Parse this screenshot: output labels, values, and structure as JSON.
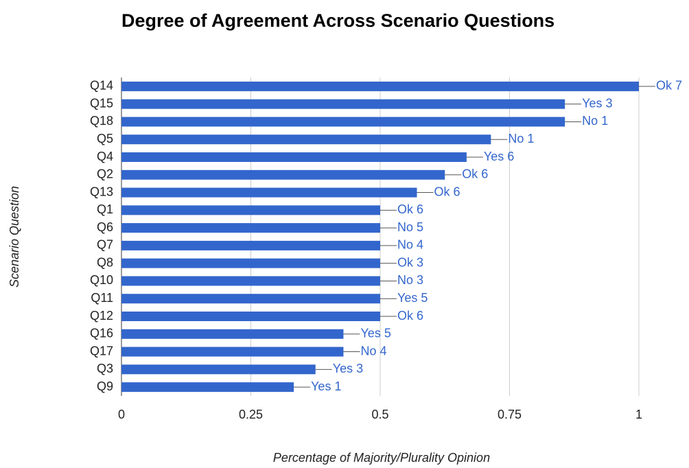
{
  "chart_data": {
    "type": "bar",
    "orientation": "horizontal",
    "title": "Degree of Agreement Across Scenario Questions",
    "xlabel": "Percentage of Majority/Plurality Opinion",
    "ylabel": "Scenario Question",
    "categories": [
      "Q14",
      "Q15",
      "Q18",
      "Q5",
      "Q4",
      "Q2",
      "Q13",
      "Q1",
      "Q6",
      "Q7",
      "Q8",
      "Q10",
      "Q11",
      "Q12",
      "Q16",
      "Q17",
      "Q3",
      "Q9"
    ],
    "values": [
      1,
      0.857,
      0.857,
      0.714,
      0.667,
      0.625,
      0.571,
      0.5,
      0.5,
      0.5,
      0.5,
      0.5,
      0.5,
      0.5,
      0.429,
      0.429,
      0.375,
      0.333
    ],
    "annotations": [
      "Ok 7",
      "Yes 3",
      "No 1",
      "No 1",
      "Yes 6",
      "Ok 6",
      "Ok 6",
      "Ok 6",
      "No 5",
      "No 4",
      "Ok 3",
      "No 3",
      "Yes 5",
      "Ok 6",
      "Yes 5",
      "No 4",
      "Yes 3",
      "Yes 1"
    ],
    "color": "#3366cc",
    "xlim": [
      0,
      1
    ],
    "xticks": [
      0,
      0.25,
      0.5,
      0.75,
      1
    ],
    "grid": true
  }
}
